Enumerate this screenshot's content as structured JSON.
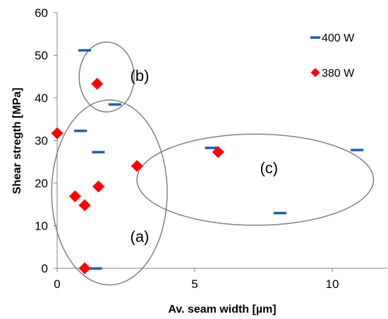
{
  "chart_data": {
    "type": "scatter",
    "xlabel": "Av. seam width [µm]",
    "ylabel": "Shear stregth [MPa]",
    "xlim": [
      0,
      12
    ],
    "ylim": [
      0,
      60
    ],
    "x_ticks": [
      0,
      5,
      10
    ],
    "y_ticks": [
      0,
      10,
      20,
      30,
      40,
      50,
      60
    ],
    "x_tick_labels": [
      "0",
      "5",
      "10"
    ],
    "y_tick_labels": [
      "0",
      "10",
      "20",
      "30",
      "40",
      "50",
      "60"
    ],
    "grid": false,
    "legend_position": "top-right",
    "series": [
      {
        "name": "400 W",
        "marker": "dash",
        "color": "#1f5fa8",
        "points": [
          {
            "x": 1.0,
            "y": 51.2
          },
          {
            "x": 2.1,
            "y": 38.5
          },
          {
            "x": 0.85,
            "y": 32.3
          },
          {
            "x": 1.5,
            "y": 27.3
          },
          {
            "x": 1.4,
            "y": 0.0
          },
          {
            "x": 5.6,
            "y": 28.3
          },
          {
            "x": 8.1,
            "y": 13.0
          },
          {
            "x": 10.9,
            "y": 27.8
          }
        ]
      },
      {
        "name": "380 W",
        "marker": "diamond",
        "color": "#ff0000",
        "points": [
          {
            "x": 1.45,
            "y": 43.3
          },
          {
            "x": 0.0,
            "y": 31.7
          },
          {
            "x": 2.9,
            "y": 24.0
          },
          {
            "x": 1.5,
            "y": 19.2
          },
          {
            "x": 0.65,
            "y": 16.9
          },
          {
            "x": 1.0,
            "y": 14.8
          },
          {
            "x": 1.0,
            "y": 0.0
          },
          {
            "x": 5.85,
            "y": 27.3
          }
        ]
      }
    ],
    "groups": [
      {
        "label": "(a)",
        "center": {
          "x": 1.9,
          "y": 17.8
        },
        "rx": 2.1,
        "ry": 21.7
      },
      {
        "label": "(b)",
        "center": {
          "x": 1.8,
          "y": 44.9
        },
        "rx": 1.0,
        "ry": 8.2
      },
      {
        "label": "(c)",
        "center": {
          "x": 7.2,
          "y": 20.8
        },
        "rx": 4.3,
        "ry": 10.7
      }
    ]
  }
}
